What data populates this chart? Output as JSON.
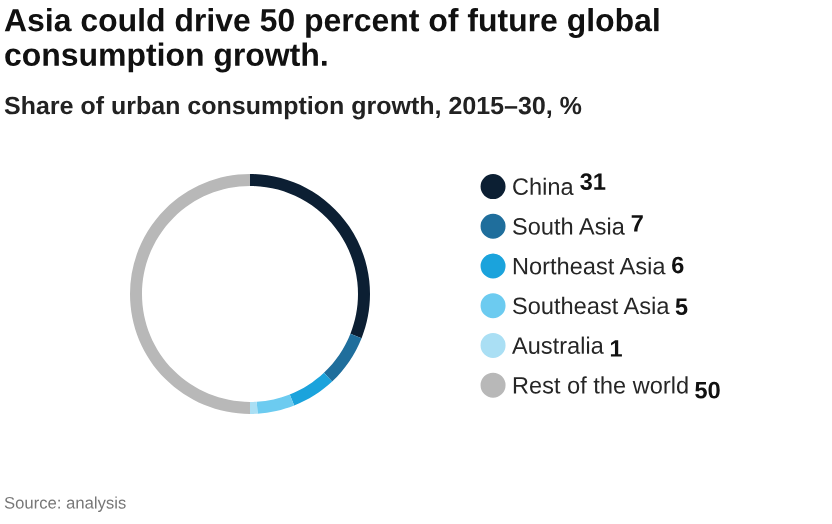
{
  "chart_data": {
    "type": "donut",
    "title": "Asia could drive 50 percent of future global consumption growth.",
    "subtitle": "Share of urban consumption growth, 2015–30, %",
    "categories": [
      "China",
      "South Asia",
      "Northeast Asia",
      "Southeast Asia",
      "Australia",
      "Rest of the world"
    ],
    "values": [
      31,
      7,
      6,
      5,
      1,
      50
    ],
    "colors": [
      "#0c1f33",
      "#1f6e9c",
      "#1ba3dc",
      "#6ccbf0",
      "#aadff4",
      "#b8b8b8"
    ],
    "data_labels": true,
    "legend": "right",
    "marker": "circle",
    "annotations": [
      "Source: analysis"
    ]
  }
}
